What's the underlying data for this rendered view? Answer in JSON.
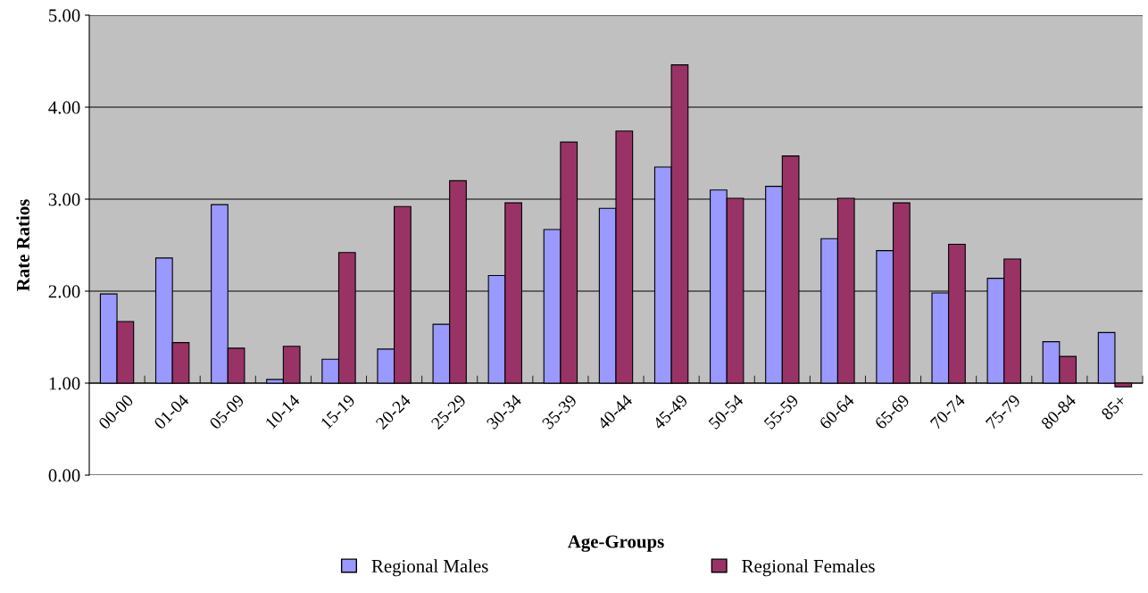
{
  "chart_data": {
    "type": "bar",
    "xlabel": "Age-Groups",
    "ylabel": "Rate Ratios",
    "categories": [
      "00-00",
      "01-04",
      "05-09",
      "10-14",
      "15-19",
      "20-24",
      "25-29",
      "30-34",
      "35-39",
      "40-44",
      "45-49",
      "50-54",
      "55-59",
      "60-64",
      "65-69",
      "70-74",
      "75-79",
      "80-84",
      "85+"
    ],
    "series": [
      {
        "name": "Regional Males",
        "color": "#9999ff",
        "base": [
          1,
          1,
          1,
          1,
          1,
          1,
          1,
          1,
          1,
          1,
          1,
          1,
          1,
          1,
          1,
          1,
          1,
          1,
          1
        ],
        "values": [
          0.97,
          1.36,
          1.94,
          0.04,
          0.26,
          0.37,
          0.64,
          1.17,
          1.67,
          1.9,
          2.35,
          2.1,
          2.14,
          1.57,
          1.44,
          0.98,
          1.14,
          0.45,
          0.55
        ]
      },
      {
        "name": "Regional Females",
        "color": "#993366",
        "base": [
          1,
          1,
          1,
          1,
          1,
          1,
          1,
          1,
          1,
          1,
          1,
          1,
          1,
          1,
          1,
          1,
          1,
          1,
          1
        ],
        "values": [
          0.67,
          0.44,
          0.38,
          0.4,
          1.42,
          1.92,
          2.2,
          1.96,
          2.62,
          2.74,
          3.46,
          2.01,
          2.47,
          2.01,
          1.96,
          1.51,
          1.35,
          0.29,
          -0.04
        ]
      }
    ],
    "ylim": [
      0,
      5
    ],
    "yticks": [
      {
        "value": 0,
        "label": "0.00"
      },
      {
        "value": 1,
        "label": "1.00"
      },
      {
        "value": 2,
        "label": "2.00"
      },
      {
        "value": 3,
        "label": "3.00"
      },
      {
        "value": 4,
        "label": "4.00"
      },
      {
        "value": 5,
        "label": "5.00"
      }
    ],
    "bands": [
      {
        "axis": "y",
        "from": 1,
        "to": 5,
        "color": "#c0c0c0"
      }
    ],
    "grid": "y",
    "legend": "bottom"
  }
}
